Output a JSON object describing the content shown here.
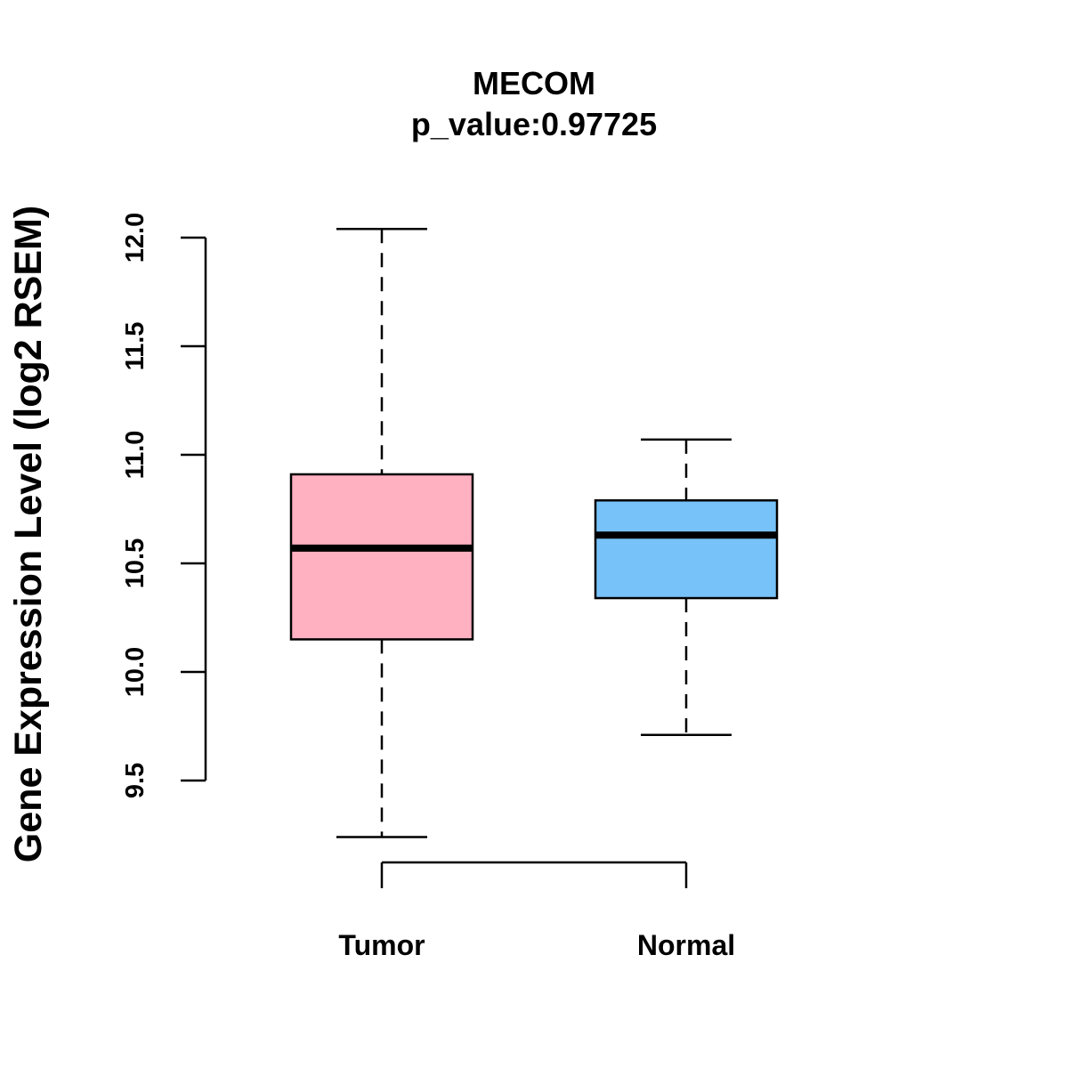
{
  "chart_data": {
    "type": "boxplot",
    "title": "MECOM",
    "subtitle": "p_value:0.97725",
    "xlabel": "",
    "ylabel": "Gene Expression Level (log2 RSEM)",
    "ylim": [
      9.5,
      12.0
    ],
    "yticks": [
      9.5,
      10.0,
      10.5,
      11.0,
      11.5,
      12.0
    ],
    "ytick_labels": [
      "9.5",
      "10.0",
      "10.5",
      "11.0",
      "11.5",
      "12.0"
    ],
    "grid": false,
    "categories": [
      "Tumor",
      "Normal"
    ],
    "series": [
      {
        "name": "Tumor",
        "whisker_low": 9.24,
        "q1": 10.15,
        "median": 10.57,
        "q3": 10.91,
        "whisker_high": 12.04,
        "color": "#FFB0C1"
      },
      {
        "name": "Normal",
        "whisker_low": 9.71,
        "q1": 10.34,
        "median": 10.63,
        "q3": 10.79,
        "whisker_high": 11.07,
        "color": "#77C2F8"
      }
    ]
  }
}
